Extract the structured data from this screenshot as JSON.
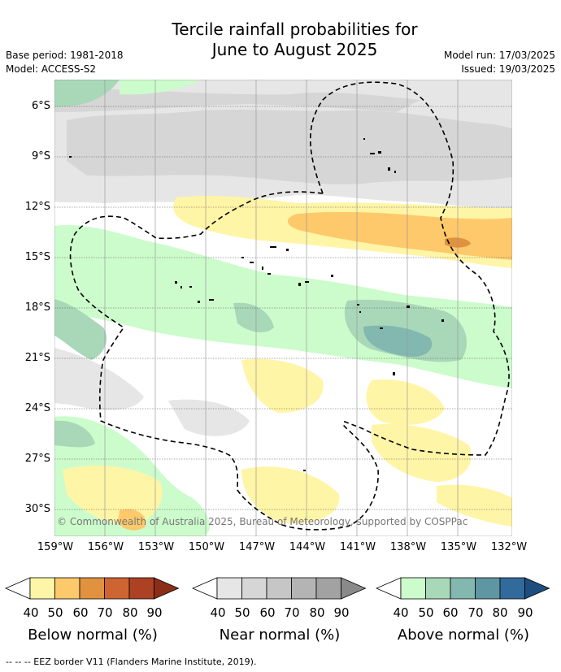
{
  "title": "Tercile rainfall probabilities for\nJune to August 2025",
  "meta_left": {
    "base_period": "Base period: 1981-2018",
    "model": "Model: ACCESS-S2"
  },
  "meta_right": {
    "model_run": "Model run: 17/03/2025",
    "issued": "Issued: 19/03/2025"
  },
  "copyright": "© Commonwealth of Australia 2025, Bureau of Meteorology, supported by COSPPac",
  "lat_labels": [
    "6°S",
    "9°S",
    "12°S",
    "15°S",
    "18°S",
    "21°S",
    "24°S",
    "27°S",
    "30°S"
  ],
  "lon_labels": [
    "159°W",
    "156°W",
    "153°W",
    "150°W",
    "147°W",
    "144°W",
    "141°W",
    "138°W",
    "135°W",
    "132°W"
  ],
  "colorbars": [
    {
      "title": "Below normal (%)",
      "ticks": [
        "40",
        "50",
        "60",
        "70",
        "80",
        "90"
      ],
      "colors": [
        "#fff5a6",
        "#fdc96a",
        "#e0923f",
        "#cd6432",
        "#ac4124",
        "#8c2e17"
      ]
    },
    {
      "title": "Near normal (%)",
      "ticks": [
        "40",
        "50",
        "60",
        "70",
        "80",
        "90"
      ],
      "colors": [
        "#e6e6e6",
        "#d6d6d6",
        "#c6c6c6",
        "#b4b4b4",
        "#a2a2a2",
        "#8a8a8a"
      ]
    },
    {
      "title": "Above normal (%)",
      "ticks": [
        "40",
        "50",
        "60",
        "70",
        "80",
        "90"
      ],
      "colors": [
        "#ccfccc",
        "#a8d8b8",
        "#82b8b0",
        "#5e96a2",
        "#326a9c",
        "#1e4e80"
      ]
    }
  ],
  "footnote": "--  --  -- EEZ border V11 (Flanders Marine Institute, 2019)."
}
